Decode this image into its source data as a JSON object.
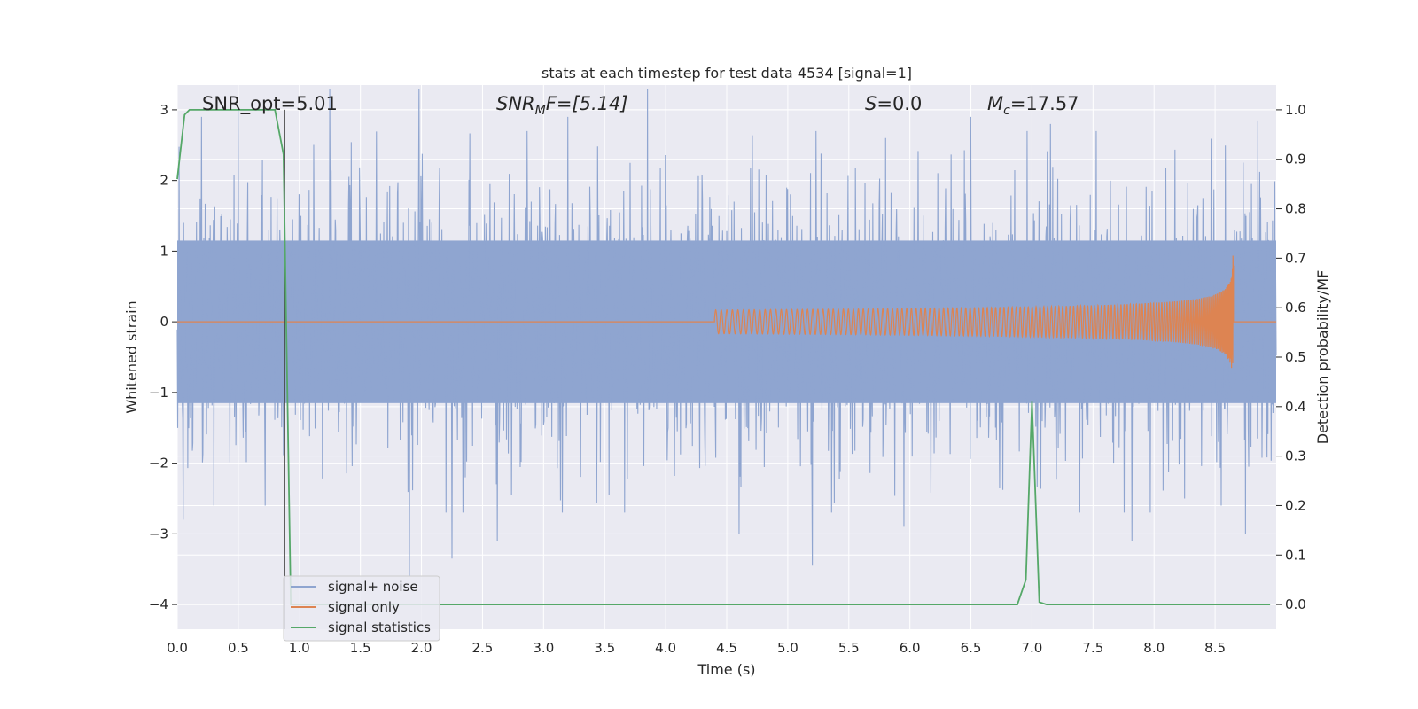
{
  "chart_data": {
    "type": "line",
    "title": "stats at each timestep for test data 4534 [signal=1]",
    "xlabel": "Time (s)",
    "ylabel_left": "Whitened strain",
    "ylabel_right": "Detection probability/MF",
    "xlim": [
      0.0,
      9.0
    ],
    "ylim_left": [
      -4.35,
      3.35
    ],
    "ylim_right": [
      -0.05,
      1.05
    ],
    "xticks": [
      "0.0",
      "0.5",
      "1.0",
      "1.5",
      "2.0",
      "2.5",
      "3.0",
      "3.5",
      "4.0",
      "4.5",
      "5.0",
      "5.5",
      "6.0",
      "6.5",
      "7.0",
      "7.5",
      "8.0",
      "8.5"
    ],
    "yticks_left": [
      "3",
      "2",
      "1",
      "0",
      "−1",
      "−2",
      "−3",
      "−4"
    ],
    "yticks_left_values": [
      3,
      2,
      1,
      0,
      -1,
      -2,
      -3,
      -4
    ],
    "yticks_right": [
      "1.0",
      "0.9",
      "0.8",
      "0.7",
      "0.6",
      "0.5",
      "0.4",
      "0.3",
      "0.2",
      "0.1",
      "0.0"
    ],
    "yticks_right_values": [
      1.0,
      0.9,
      0.8,
      0.7,
      0.6,
      0.5,
      0.4,
      0.3,
      0.2,
      0.1,
      0.0
    ],
    "grid": true,
    "legend_placement": "lower-left",
    "annotations": {
      "snr_opt": "SNR_opt=5.01",
      "snr_mf_main": "SNR",
      "snr_mf_sub": "M",
      "snr_mf_rest": "F=[5.14]",
      "s_main": "S",
      "s_rest": "=0.0",
      "mc_main": "M",
      "mc_sub": "c",
      "mc_rest": "=17.57"
    },
    "vertical_marker_x": 0.88,
    "series": [
      {
        "name": "signal+ noise",
        "color": "#8fa5d0",
        "axis": "left",
        "description_values": "whitened noise, roughly N(0,1), dense over 0-9 s",
        "noise_std": 0.95,
        "spikes": [
          [
            0.05,
            -2.8
          ],
          [
            0.2,
            2.9
          ],
          [
            0.3,
            -2.6
          ],
          [
            0.5,
            3.0
          ],
          [
            0.72,
            -2.6
          ],
          [
            1.25,
            3.3
          ],
          [
            1.9,
            -3.6
          ],
          [
            1.98,
            3.3
          ],
          [
            2.25,
            -3.35
          ],
          [
            2.62,
            -3.1
          ],
          [
            3.2,
            2.9
          ],
          [
            3.85,
            3.3
          ],
          [
            4.6,
            -3.0
          ],
          [
            5.2,
            -3.45
          ],
          [
            5.8,
            2.6
          ],
          [
            5.95,
            -2.9
          ],
          [
            6.5,
            2.9
          ],
          [
            7.15,
            2.8
          ],
          [
            7.82,
            -3.1
          ],
          [
            8.25,
            -2.5
          ],
          [
            8.55,
            -2.6
          ],
          [
            8.75,
            -3.0
          ],
          [
            8.85,
            2.85
          ]
        ]
      },
      {
        "name": "signal only",
        "color": "#dd8452",
        "axis": "left",
        "chirp_start": 4.4,
        "chirp_end": 8.65,
        "peak_amplitude": 0.98
      },
      {
        "name": "signal statistics",
        "color": "#55a868",
        "axis": "right",
        "x": [
          0.0,
          0.06,
          0.1,
          0.15,
          0.3,
          0.5,
          0.65,
          0.8,
          0.87,
          0.93,
          1.02,
          1.5,
          2.0,
          3.0,
          4.0,
          5.0,
          6.0,
          6.5,
          6.88,
          6.95,
          7.0,
          7.06,
          7.12,
          7.5,
          8.0,
          8.5,
          8.95
        ],
        "y": [
          0.86,
          0.99,
          1.0,
          1.0,
          1.0,
          1.0,
          1.0,
          1.0,
          0.91,
          0.0,
          0.0,
          0.0,
          0.0,
          0.0,
          0.0,
          0.0,
          0.0,
          0.0,
          0.0,
          0.05,
          0.41,
          0.005,
          0.0,
          0.0,
          0.0,
          0.0,
          0.0
        ]
      }
    ]
  }
}
